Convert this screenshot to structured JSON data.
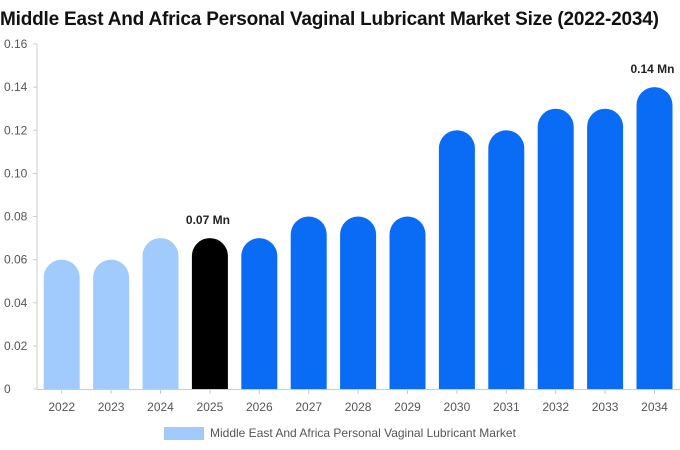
{
  "chart_data": {
    "type": "bar",
    "title": "Middle East And Africa Personal Vaginal Lubricant Market Size (2022-2034)",
    "categories": [
      "2022",
      "2023",
      "2024",
      "2025",
      "2026",
      "2027",
      "2028",
      "2029",
      "2030",
      "2031",
      "2032",
      "2033",
      "2034"
    ],
    "values": [
      0.06,
      0.06,
      0.07,
      0.07,
      0.07,
      0.08,
      0.08,
      0.08,
      0.12,
      0.12,
      0.13,
      0.13,
      0.14
    ],
    "bar_colors": [
      "#a0cbfc",
      "#a0cbfc",
      "#a0cbfc",
      "#000000",
      "#0a6cf5",
      "#0a6cf5",
      "#0a6cf5",
      "#0a6cf5",
      "#0a6cf5",
      "#0a6cf5",
      "#0a6cf5",
      "#0a6cf5",
      "#0a6cf5"
    ],
    "data_labels": [
      {
        "index": 3,
        "text": "0.07 Mn"
      },
      {
        "index": 12,
        "text": "0.14 Mn"
      }
    ],
    "ylim": [
      0,
      0.16
    ],
    "yticks": [
      0,
      0.02,
      0.04,
      0.06,
      0.08,
      0.1,
      0.12,
      0.14,
      0.16
    ],
    "ytick_labels": [
      "0",
      "0.02",
      "0.04",
      "0.06",
      "0.08",
      "0.10",
      "0.12",
      "0.14",
      "0.16"
    ],
    "xlabel": "",
    "ylabel": "",
    "legend": {
      "label": "Middle East And Africa Personal Vaginal Lubricant Market",
      "color": "#a0cbfc",
      "placement": "bottom-center"
    },
    "axis_color": "#cccccc",
    "grid": false
  }
}
